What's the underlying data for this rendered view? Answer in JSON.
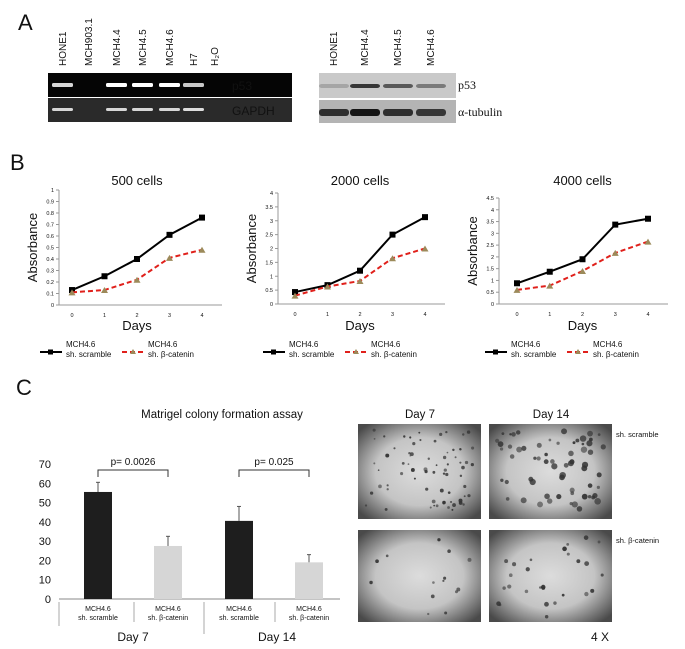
{
  "panels": {
    "a": "A",
    "b": "B",
    "c": "C"
  },
  "panel_a": {
    "rt_pcr": {
      "lanes": [
        "HONE1",
        "MCH903.1",
        "MCH4.4",
        "MCH4.5",
        "MCH4.6",
        "H7",
        "H₂O"
      ],
      "rows": [
        {
          "label": "p53",
          "band_intensity": [
            0.7,
            0,
            1,
            1,
            1,
            0.6,
            0
          ]
        },
        {
          "label": "GAPDH",
          "band_intensity": [
            0.7,
            0,
            0.7,
            0.7,
            0.7,
            0.75,
            0
          ]
        }
      ]
    },
    "western": {
      "lanes": [
        "HONE1",
        "MCH4.4",
        "MCH4.5",
        "MCH4.6"
      ],
      "rows": [
        {
          "label": "p53",
          "band_intensity": [
            0.15,
            0.8,
            0.6,
            0.4
          ]
        },
        {
          "label": "α-tubulin",
          "band_intensity": [
            0.85,
            1,
            0.85,
            0.8
          ]
        }
      ]
    }
  },
  "chart_data": [
    {
      "type": "line",
      "title": "500 cells",
      "xlabel": "Days",
      "ylabel": "Absorbance",
      "x": [
        0,
        1,
        2,
        3,
        4
      ],
      "ylim": [
        0,
        1
      ],
      "yticks": [
        "0",
        "0.1",
        "0.2",
        "0.3",
        "0.4",
        "0.5",
        "0.6",
        "0.7",
        "0.8",
        "0.9",
        "1"
      ],
      "series": [
        {
          "name": "MCH4.6 sh. scramble",
          "legend": [
            "MCH4.6",
            "sh. scramble"
          ],
          "values": [
            0.13,
            0.25,
            0.4,
            0.61,
            0.76
          ],
          "color": "#000000"
        },
        {
          "name": "MCH4.6 sh. β-catenin",
          "legend": [
            "MCH4.6",
            "sh. β-catenin"
          ],
          "values": [
            0.11,
            0.13,
            0.22,
            0.41,
            0.48
          ],
          "color": "#e0201b"
        }
      ],
      "legend_position": "bottom"
    },
    {
      "type": "line",
      "title": "2000 cells",
      "xlabel": "Days",
      "ylabel": "Absorbance",
      "x": [
        0,
        1,
        2,
        3,
        4
      ],
      "ylim": [
        0,
        4
      ],
      "yticks": [
        "0",
        "0.5",
        "1",
        "1.5",
        "2",
        "2.5",
        "3",
        "3.5",
        "4"
      ],
      "series": [
        {
          "name": "MCH4.6 sh. scramble",
          "legend": [
            "MCH4.6",
            "sh. scramble"
          ],
          "values": [
            0.43,
            0.68,
            1.2,
            2.5,
            3.13
          ],
          "color": "#000000"
        },
        {
          "name": "MCH4.6 sh. β-catenin",
          "legend": [
            "MCH4.6",
            "sh. β-catenin"
          ],
          "values": [
            0.3,
            0.63,
            0.83,
            1.65,
            2.0
          ],
          "color": "#e0201b"
        }
      ],
      "legend_position": "bottom"
    },
    {
      "type": "line",
      "title": "4000 cells",
      "xlabel": "Days",
      "ylabel": "Absorbance",
      "x": [
        0,
        1,
        2,
        3,
        4
      ],
      "ylim": [
        0,
        4.5
      ],
      "yticks": [
        "0",
        "0.5",
        "1",
        "1.5",
        "2",
        "2.5",
        "3",
        "3.5",
        "4",
        "4.5"
      ],
      "series": [
        {
          "name": "MCH4.6 sh. scramble",
          "legend": [
            "MCH4.6",
            "sh. scramble"
          ],
          "values": [
            0.88,
            1.37,
            1.9,
            3.37,
            3.62
          ],
          "color": "#000000"
        },
        {
          "name": "MCH4.6 sh. β-catenin",
          "legend": [
            "MCH4.6",
            "sh. β-catenin"
          ],
          "values": [
            0.6,
            0.78,
            1.4,
            2.17,
            2.65
          ],
          "color": "#e0201b"
        }
      ],
      "legend_position": "bottom"
    },
    {
      "type": "bar",
      "title": "Matrigel colony formation assay",
      "ylim": [
        0,
        70
      ],
      "yticks": [
        "0",
        "10",
        "20",
        "30",
        "40",
        "50",
        "60",
        "70"
      ],
      "groups": [
        "Day 7",
        "Day 14"
      ],
      "categories": [
        {
          "line1": "MCH4.6",
          "line2": "sh. scramble",
          "group": 0,
          "value": 55.5,
          "error": 5,
          "color": "#1e1e1e"
        },
        {
          "line1": "MCH4.6",
          "line2": "sh. β-catenin",
          "group": 0,
          "value": 27.5,
          "error": 5,
          "color": "#d6d6d6"
        },
        {
          "line1": "MCH4.6",
          "line2": "sh. scramble",
          "group": 1,
          "value": 40.5,
          "error": 7.5,
          "color": "#1e1e1e"
        },
        {
          "line1": "MCH4.6",
          "line2": "sh. β-catenin",
          "group": 1,
          "value": 19,
          "error": 4,
          "color": "#d6d6d6"
        }
      ],
      "annotations": [
        "p= 0.0026",
        "p= 0.025"
      ]
    }
  ],
  "micrographs": {
    "columns": [
      "Day 7",
      "Day 14"
    ],
    "rows": [
      "sh. scramble",
      "sh. β-catenin"
    ],
    "magnification": "4 X",
    "colony_density": [
      [
        0.8,
        0.7
      ],
      [
        0.15,
        0.3
      ]
    ]
  }
}
